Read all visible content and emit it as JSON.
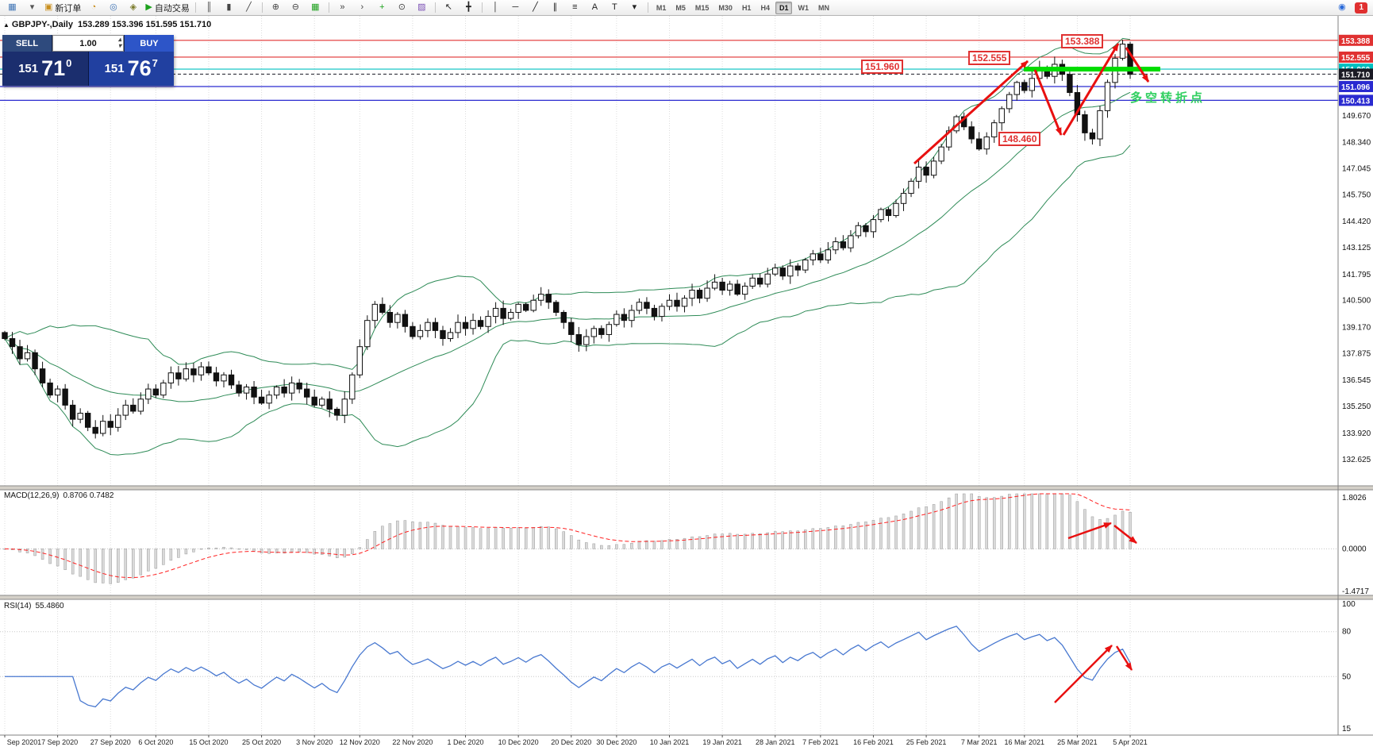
{
  "colors": {
    "up_candle": "#ffffff",
    "down_candle": "#111111",
    "candle_border": "#111111",
    "bollinger": "#2e8b57",
    "grid": "#dcdcdc",
    "axis_border": "#808080",
    "macd_signal": "#ff2222",
    "macd_hist_fill": "#dadada",
    "macd_hist_stroke": "#9a9a9a",
    "rsi_line": "#4878d0",
    "rsi_level": "#c8c8c8",
    "green_band": "#00dd00",
    "note_green": "#2fcf5f",
    "tag_red": "#e03131",
    "arrow_red": "#e81010"
  },
  "toolbar": {
    "items": [
      {
        "name": "new-chart-icon",
        "glyph": "▦",
        "color": "#3f74b5"
      },
      {
        "name": "chart-dropdown-icon",
        "glyph": "▾",
        "color": "#555555"
      },
      {
        "name": "new-order-button",
        "glyph": "▣",
        "color": "#c98f1f",
        "label": "新订单"
      },
      {
        "name": "history-center-icon",
        "glyph": "◔",
        "color": "#c98f1f"
      },
      {
        "name": "global-variables-icon",
        "glyph": "◎",
        "color": "#3f74b5"
      },
      {
        "name": "metaeditor-icon",
        "glyph": "◈",
        "color": "#7a7a2a"
      },
      {
        "name": "autotrading-button",
        "glyph": "▶",
        "color": "#1da11d",
        "label": "自动交易"
      },
      {
        "sep": true
      },
      {
        "name": "bar-chart-icon",
        "glyph": "║",
        "color": "#444444"
      },
      {
        "name": "candlestick-chart-icon",
        "glyph": "▮",
        "color": "#444444"
      },
      {
        "name": "line-chart-icon",
        "glyph": "╱",
        "color": "#444444"
      },
      {
        "sep": true
      },
      {
        "name": "zoom-in-icon",
        "glyph": "⊕",
        "color": "#444444"
      },
      {
        "name": "zoom-out-icon",
        "glyph": "⊖",
        "color": "#444444"
      },
      {
        "name": "tile-windows-icon",
        "glyph": "▦",
        "color": "#1da11d"
      },
      {
        "sep": true
      },
      {
        "name": "auto-scroll-icon",
        "glyph": "»",
        "color": "#444444"
      },
      {
        "name": "chart-shift-icon",
        "glyph": "›",
        "color": "#444444"
      },
      {
        "name": "indicators-icon",
        "glyph": "+",
        "color": "#1da11d"
      },
      {
        "name": "periods-icon",
        "glyph": "⊙",
        "color": "#444444"
      },
      {
        "name": "templates-icon",
        "glyph": "▨",
        "color": "#7a4fb5"
      },
      {
        "sep": true
      },
      {
        "name": "cursor-icon",
        "glyph": "↖",
        "color": "#222222"
      },
      {
        "name": "crosshair-icon",
        "glyph": "╋",
        "color": "#222222"
      },
      {
        "sep": true
      },
      {
        "name": "vertical-line-icon",
        "glyph": "│",
        "color": "#222222"
      },
      {
        "name": "horizontal-line-icon",
        "glyph": "─",
        "color": "#222222"
      },
      {
        "name": "trendline-icon",
        "glyph": "╱",
        "color": "#222222"
      },
      {
        "name": "channel-icon",
        "glyph": "∥",
        "color": "#222222"
      },
      {
        "name": "fibonacci-icon",
        "glyph": "≡",
        "color": "#222222"
      },
      {
        "name": "text-icon",
        "glyph": "A",
        "color": "#222222"
      },
      {
        "name": "label-icon",
        "glyph": "T",
        "color": "#222222"
      },
      {
        "name": "arrows-menu-icon",
        "glyph": "▾",
        "color": "#222222"
      }
    ],
    "timeframes": [
      "M1",
      "M5",
      "M15",
      "M30",
      "H1",
      "H4",
      "D1",
      "W1",
      "MN"
    ],
    "active_timeframe": "D1",
    "right_items": [
      {
        "name": "community-icon",
        "glyph": "◉",
        "color": "#2a6ad9"
      }
    ],
    "badge": "1"
  },
  "chart": {
    "collapse_glyph": "▲",
    "symbol_title": "GBPJPY-,Daily",
    "ohlc_text": "153.289 153.396 151.595 151.710"
  },
  "one_click": {
    "sell_label": "SELL",
    "buy_label": "BUY",
    "volume": "1.00",
    "spin_up_glyph": "▴",
    "spin_down_glyph": "▾",
    "sell_big": "151",
    "sell_pips": "71",
    "sell_sup": "0",
    "buy_big": "151",
    "buy_pips": "76",
    "buy_sup": "7"
  },
  "annotations": {
    "price_tags": [
      {
        "text": "153.388"
      },
      {
        "text": "152.555"
      },
      {
        "text": "151.960"
      },
      {
        "text": "148.460"
      }
    ],
    "note": "多空转折点"
  },
  "price_axis": {
    "scale_labels": [
      149.67,
      148.34,
      147.045,
      145.75,
      144.42,
      143.125,
      141.795,
      140.5,
      139.17,
      137.875,
      136.545,
      135.25,
      133.92,
      132.625
    ],
    "line_labels": [
      {
        "price": 153.388,
        "color": "#e03131",
        "line": "solid"
      },
      {
        "price": 152.555,
        "color": "#e03131",
        "line": "solid"
      },
      {
        "price": 151.96,
        "color": "#00c0c0",
        "line": "solid"
      },
      {
        "price": 151.71,
        "color": "#1a1a24",
        "line": "dash"
      },
      {
        "price": 151.096,
        "color": "#2a2ad0",
        "line": "solid"
      },
      {
        "price": 150.413,
        "color": "#2a2ad0",
        "line": "solid"
      }
    ]
  },
  "macd": {
    "label": "MACD(12,26,9)",
    "values": "0.8706 0.7482",
    "axis_labels": [
      "1.8026",
      "0.0000",
      "-1.4717"
    ]
  },
  "rsi": {
    "label": "RSI(14)",
    "values": "55.4860",
    "axis_labels": [
      100,
      80,
      50,
      15
    ],
    "levels": [
      80,
      50
    ]
  },
  "chart_data": {
    "type": "candlestick",
    "symbol": "GBPJPY-",
    "timeframe": "Daily",
    "ohlc_header": {
      "open": 153.289,
      "high": 153.396,
      "low": 151.595,
      "close": 151.71
    },
    "closes": [
      138.6,
      138.2,
      137.6,
      137.9,
      137.1,
      136.4,
      135.8,
      136.1,
      135.3,
      134.6,
      134.9,
      134.2,
      133.9,
      134.5,
      134.2,
      134.8,
      135.3,
      135.0,
      135.6,
      136.1,
      135.8,
      136.4,
      136.9,
      136.6,
      137.1,
      136.8,
      137.2,
      136.9,
      136.5,
      136.8,
      136.3,
      135.9,
      136.2,
      135.7,
      135.4,
      135.8,
      136.2,
      135.9,
      136.4,
      136.1,
      135.7,
      135.3,
      135.6,
      135.1,
      134.8,
      135.6,
      136.8,
      138.2,
      139.5,
      140.3,
      139.9,
      139.4,
      139.8,
      139.2,
      138.7,
      139.0,
      139.4,
      139.0,
      138.6,
      138.9,
      139.4,
      139.1,
      139.5,
      139.2,
      139.7,
      140.1,
      139.6,
      139.9,
      140.3,
      140.0,
      140.5,
      140.8,
      140.4,
      139.9,
      139.4,
      138.8,
      138.3,
      138.7,
      139.1,
      138.8,
      139.3,
      139.8,
      139.5,
      140.0,
      140.4,
      140.1,
      139.7,
      140.2,
      140.5,
      140.2,
      140.6,
      141.0,
      140.6,
      141.1,
      141.4,
      141.0,
      141.3,
      140.8,
      141.2,
      141.6,
      141.3,
      141.8,
      142.1,
      141.7,
      142.2,
      142.0,
      142.5,
      142.8,
      142.5,
      143.0,
      143.4,
      143.1,
      143.7,
      144.2,
      143.9,
      144.5,
      145.0,
      144.7,
      145.3,
      145.8,
      146.4,
      147.1,
      146.7,
      147.4,
      148.1,
      148.9,
      149.6,
      149.1,
      148.5,
      148.0,
      148.6,
      149.3,
      150.0,
      150.7,
      151.3,
      150.9,
      151.5,
      152.0,
      151.6,
      152.2,
      151.7,
      150.8,
      149.7,
      148.8,
      148.5,
      149.9,
      151.3,
      152.5,
      153.2,
      151.7
    ],
    "dates": [
      "Sep 2020",
      "17 Sep 2020",
      "27 Sep 2020",
      "6 Oct 2020",
      "15 Oct 2020",
      "25 Oct 2020",
      "3 Nov 2020",
      "12 Nov 2020",
      "22 Nov 2020",
      "1 Dec 2020",
      "10 Dec 2020",
      "20 Dec 2020",
      "30 Dec 2020",
      "10 Jan 2021",
      "19 Jan 2021",
      "28 Jan 2021",
      "7 Feb 2021",
      "16 Feb 2021",
      "25 Feb 2021",
      "7 Mar 2021",
      "16 Mar 2021",
      "25 Mar 2021",
      "5 Apr 2021"
    ],
    "indicators": {
      "bollinger": {
        "period": 20,
        "deviation": 2
      },
      "macd": {
        "fast": 12,
        "slow": 26,
        "signal": 9,
        "current": [
          0.8706,
          0.7482
        ]
      },
      "rsi": {
        "period": 14,
        "current": 55.486
      }
    },
    "y_axis_main": {
      "min": 131.3,
      "max": 154.6
    },
    "y_axis_macd": {
      "min": -1.4717,
      "max": 1.8026
    },
    "y_axis_rsi": {
      "min": 13,
      "max": 100
    },
    "levels": {
      "resistance": [
        153.388,
        152.555
      ],
      "pivot": 151.96,
      "bid": 151.71,
      "support": [
        151.096,
        150.413
      ],
      "swing_low": 148.46
    }
  }
}
